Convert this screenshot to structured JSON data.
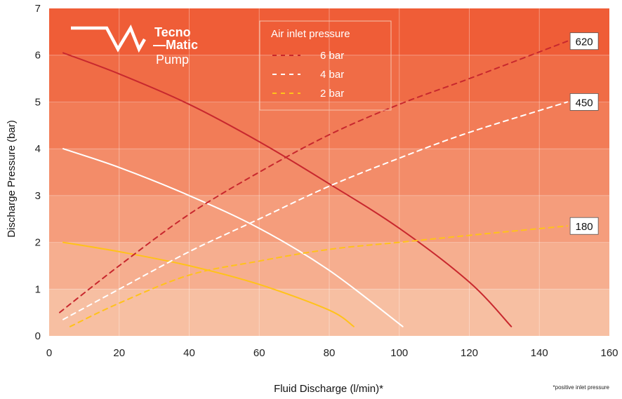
{
  "chart_data": {
    "type": "line",
    "xlabel": "Fluid Discharge (l/min)*",
    "ylabel": "Discharge Pressure (bar)",
    "xlim": [
      0,
      160
    ],
    "ylim": [
      0,
      7
    ],
    "xticks": [
      "0",
      "20",
      "40",
      "60",
      "80",
      "100",
      "120",
      "140",
      "160"
    ],
    "yticks": [
      "0",
      "1",
      "2",
      "3",
      "4",
      "5",
      "6",
      "7"
    ],
    "grid": true,
    "legend": {
      "title": "Air inlet pressure",
      "position": "top-center",
      "entries": [
        "6 bar",
        "4 bar",
        "2 bar"
      ]
    },
    "series": [
      {
        "name": "6 bar",
        "kind": "pressure-curve",
        "color": "#c8282e",
        "x": [
          4,
          20,
          40,
          60,
          80,
          100,
          120,
          132
        ],
        "y": [
          6.05,
          5.6,
          4.95,
          4.15,
          3.25,
          2.3,
          1.15,
          0.2
        ]
      },
      {
        "name": "4 bar",
        "kind": "pressure-curve",
        "color": "#ffffff",
        "x": [
          4,
          20,
          40,
          60,
          80,
          101
        ],
        "y": [
          4.0,
          3.6,
          3.0,
          2.3,
          1.4,
          0.2
        ]
      },
      {
        "name": "2 bar",
        "kind": "pressure-curve",
        "color": "#ffc21a",
        "x": [
          4,
          20,
          40,
          60,
          80,
          87
        ],
        "y": [
          2.0,
          1.8,
          1.5,
          1.1,
          0.55,
          0.2
        ]
      },
      {
        "name": "6 bar",
        "kind": "air-consumption",
        "color": "#c8282e",
        "label": "620",
        "x": [
          3,
          20,
          40,
          60,
          80,
          100,
          120,
          148
        ],
        "y": [
          0.5,
          1.5,
          2.6,
          3.5,
          4.3,
          4.95,
          5.5,
          6.3
        ]
      },
      {
        "name": "4 bar",
        "kind": "air-consumption",
        "color": "#ffffff",
        "label": "450",
        "x": [
          4,
          20,
          40,
          60,
          80,
          100,
          120,
          148
        ],
        "y": [
          0.35,
          1.0,
          1.8,
          2.5,
          3.2,
          3.8,
          4.35,
          5.0
        ]
      },
      {
        "name": "2 bar",
        "kind": "air-consumption",
        "color": "#ffc21a",
        "label": "180",
        "x": [
          6,
          20,
          40,
          60,
          80,
          100,
          120,
          148
        ],
        "y": [
          0.2,
          0.7,
          1.3,
          1.6,
          1.85,
          2.0,
          2.15,
          2.35
        ]
      }
    ],
    "band_colors": [
      "#f7bfa2",
      "#f6ae8f",
      "#f59d7c",
      "#f38c69",
      "#f27c57",
      "#f06c46",
      "#ef5d37"
    ]
  },
  "logo": {
    "line1": "Tecno",
    "line2": "—Matic",
    "line3": "Pump"
  },
  "footnote": "*positive inlet pressure"
}
